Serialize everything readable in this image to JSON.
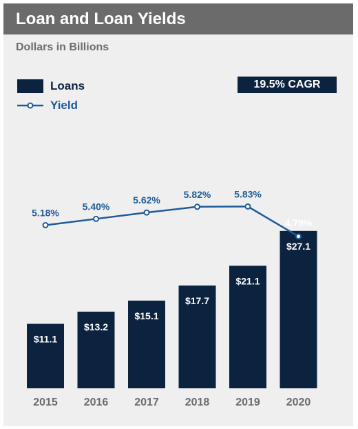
{
  "header": {
    "title": "Loan and Loan Yields",
    "subtitle": "Dollars in Billions"
  },
  "badge": {
    "cagr": "19.5% CAGR"
  },
  "colors": {
    "bar": "#0c2340",
    "yield_line": "#1f5b99",
    "header_bg": "#6b6b6b",
    "panel_bg": "#efefef",
    "axis_label": "#6b6b6b"
  },
  "chart_data": {
    "type": "bar",
    "categories": [
      "2015",
      "2016",
      "2017",
      "2018",
      "2019",
      "2020"
    ],
    "series": [
      {
        "name": "Loans",
        "type": "bar",
        "values": [
          11.1,
          13.2,
          15.1,
          17.7,
          21.1,
          27.1
        ],
        "labels": [
          "$11.1",
          "$13.2",
          "$15.1",
          "$17.7",
          "$21.1",
          "$27.1"
        ]
      },
      {
        "name": "Yield",
        "type": "line",
        "values": [
          5.18,
          5.4,
          5.62,
          5.82,
          5.83,
          4.79
        ],
        "labels": [
          "5.18%",
          "5.40%",
          "5.62%",
          "5.82%",
          "5.83%",
          "4.79%"
        ]
      }
    ],
    "title": "Loan and Loan Yields",
    "subtitle": "Dollars in Billions",
    "legend": "top-left"
  }
}
